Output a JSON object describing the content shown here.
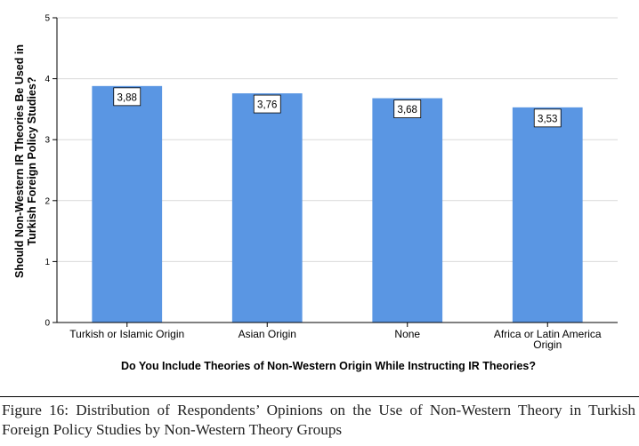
{
  "chart_data": {
    "type": "bar",
    "categories": [
      [
        "Turkish or Islamic Origin"
      ],
      [
        "Asian Origin"
      ],
      [
        "None"
      ],
      [
        "Africa or Latin America",
        "Origin"
      ]
    ],
    "values": [
      3.88,
      3.76,
      3.68,
      3.53
    ],
    "data_labels": [
      "3,88",
      "3,76",
      "3,68",
      "3,53"
    ],
    "ylim": [
      0,
      5
    ],
    "yticks": [
      "0",
      "1",
      "2",
      "3",
      "4",
      "5"
    ],
    "ylabel": [
      "Should Non-Western IR Theories Be Used in",
      "Turkish Foreign Policy Studies?"
    ],
    "xlabel": "Do You Include Theories of Non-Western Origin While Instructing IR Theories?",
    "grid": true,
    "bar_color": "#5a96e3"
  },
  "caption": "Figure 16: Distribution of Respondents’ Opinions on the Use of Non-Western Theory in Turkish Foreign Policy Studies by Non-Western Theory Groups"
}
